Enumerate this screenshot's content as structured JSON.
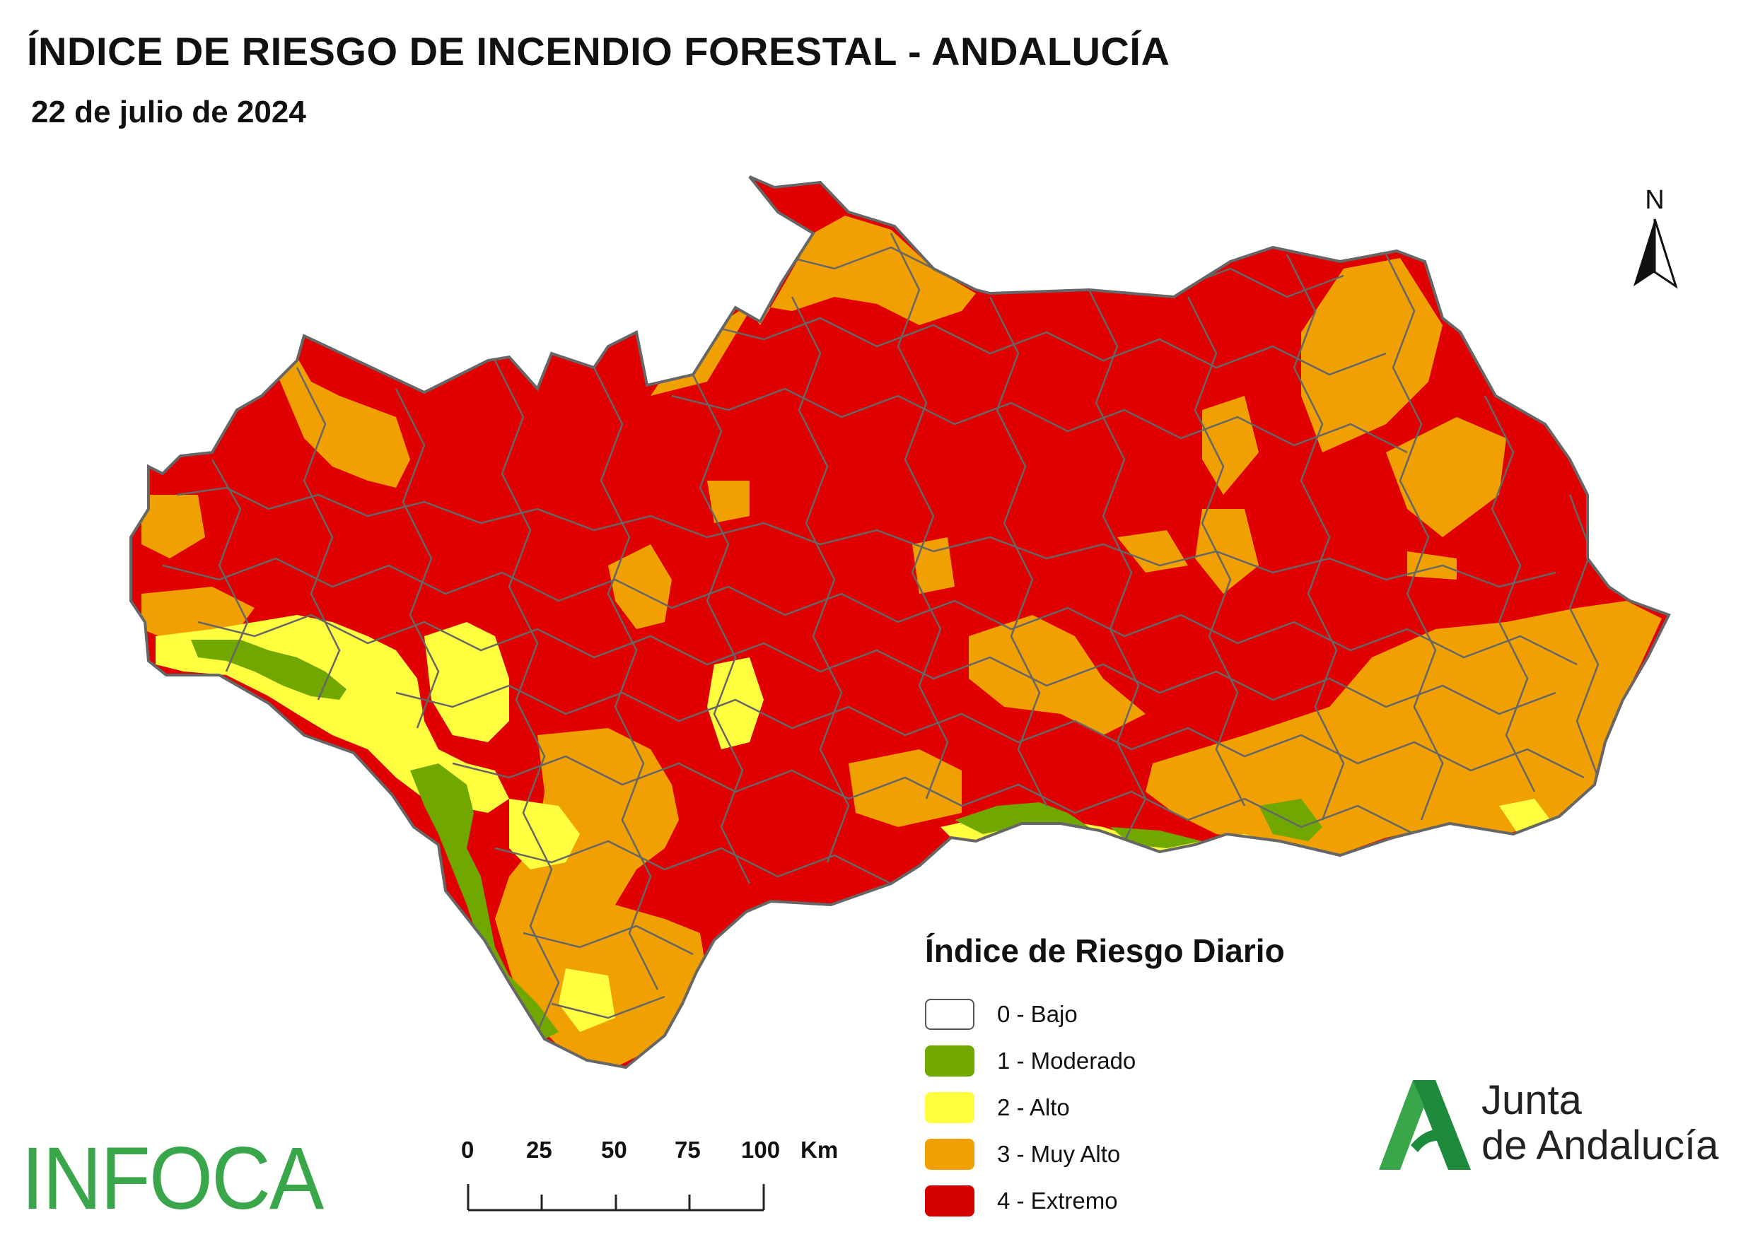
{
  "header": {
    "title": "ÍNDICE DE RIESGO DE INCENDIO FORESTAL - ANDALUCÍA",
    "date": "22 de julio de 2024"
  },
  "north_arrow": {
    "label": "N"
  },
  "legend": {
    "title": "Índice de Riesgo Diario",
    "items": [
      {
        "label": "0 - Bajo",
        "color": "#ffffff"
      },
      {
        "label": "1 - Moderado",
        "color": "#70a800"
      },
      {
        "label": "2 - Alto",
        "color": "#ffff40"
      },
      {
        "label": "3 - Muy Alto",
        "color": "#f0a000"
      },
      {
        "label": "4 - Extremo",
        "color": "#e00000"
      }
    ]
  },
  "scale": {
    "ticks": [
      "0",
      "25",
      "50",
      "75",
      "100"
    ],
    "unit": "Km"
  },
  "logos": {
    "infoca": "INFOCA",
    "junta_line1": "Junta",
    "junta_line2": "de Andalucía"
  },
  "colors": {
    "extremo": "#e00000",
    "muy_alto": "#f0a000",
    "alto": "#ffff40",
    "moderado": "#70a800",
    "boundary": "#666666",
    "junta_green": "#1e8a3c"
  }
}
